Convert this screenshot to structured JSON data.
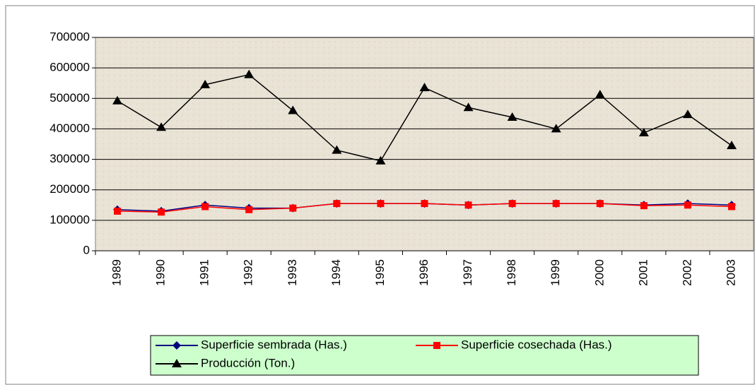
{
  "chart_data": {
    "type": "line",
    "categories": [
      "1989",
      "1990",
      "1991",
      "1992",
      "1993",
      "1994",
      "1995",
      "1996",
      "1997",
      "1998",
      "1999",
      "2000",
      "2001",
      "2002",
      "2003"
    ],
    "series": [
      {
        "name": "Superficie sembrada (Has.)",
        "color": "#000080",
        "marker": "diamond",
        "values": [
          135000,
          130000,
          150000,
          140000,
          140000,
          155000,
          155000,
          155000,
          150000,
          155000,
          155000,
          155000,
          150000,
          155000,
          150000
        ]
      },
      {
        "name": "Superficie cosechada (Has.)",
        "color": "#ff0000",
        "marker": "square",
        "values": [
          130000,
          127000,
          145000,
          135000,
          140000,
          155000,
          155000,
          155000,
          150000,
          155000,
          155000,
          155000,
          148000,
          150000,
          145000
        ]
      },
      {
        "name": "Producción (Ton.)",
        "color": "#000000",
        "marker": "triangle",
        "values": [
          492000,
          405000,
          545000,
          578000,
          460000,
          330000,
          295000,
          535000,
          470000,
          438000,
          400000,
          512000,
          387000,
          447000,
          345000
        ]
      }
    ],
    "ylim": [
      0,
      700000
    ],
    "yticks": [
      0,
      100000,
      200000,
      300000,
      400000,
      500000,
      600000,
      700000
    ],
    "grid": true
  }
}
